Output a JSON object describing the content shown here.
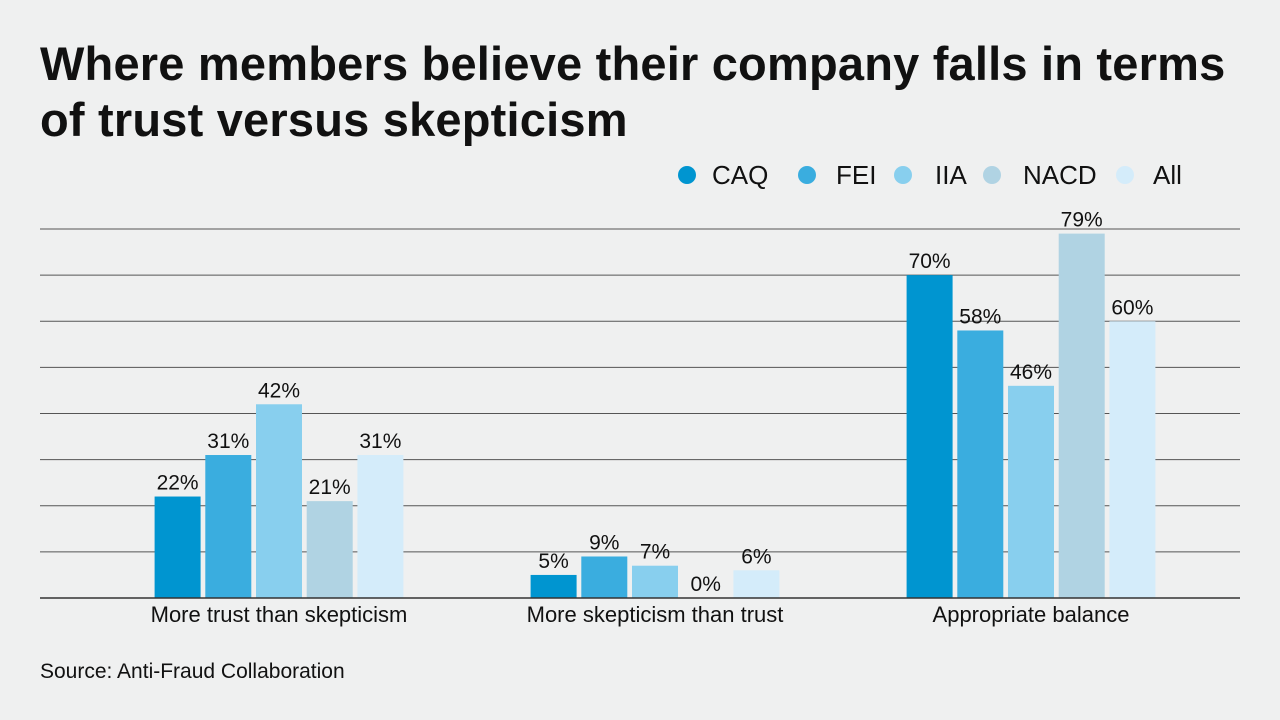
{
  "chart_data": {
    "type": "bar",
    "title": "Where members believe their company falls in terms of trust versus skepticism",
    "categories": [
      "More trust than skepticism",
      "More skepticism than trust",
      "Appropriate balance"
    ],
    "series": [
      {
        "name": "CAQ",
        "color": "#0095d0",
        "values": [
          22,
          5,
          70
        ]
      },
      {
        "name": "FEI",
        "color": "#3aaddf",
        "values": [
          31,
          9,
          58
        ]
      },
      {
        "name": "IIA",
        "color": "#88cfee",
        "values": [
          42,
          7,
          46
        ]
      },
      {
        "name": "NACD",
        "color": "#b0d3e3",
        "values": [
          21,
          0,
          79
        ]
      },
      {
        "name": "All",
        "color": "#d4ecfa",
        "values": [
          31,
          6,
          60
        ]
      }
    ],
    "value_suffix": "%",
    "xlabel": "",
    "ylabel": "",
    "ylim": [
      0,
      80
    ],
    "grid": true,
    "legend": "top-right",
    "source": "Source: Anti-Fraud Collaboration"
  }
}
